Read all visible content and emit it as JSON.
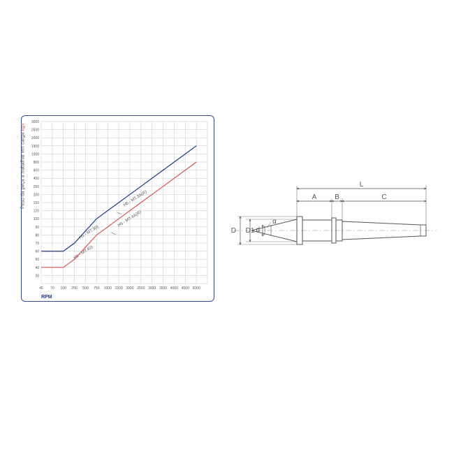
{
  "chart": {
    "type": "line-loglog",
    "xlabel": "RPM",
    "ylabel": "Peso da peça a trabalhar em carga",
    "ylabel_unit": "kgs",
    "background_color": "#ffffff",
    "grid_color": "#b8b8b8",
    "border_color": "#3b4a8a",
    "xticks": [
      45,
      70,
      100,
      250,
      500,
      750,
      1000,
      1500,
      2000,
      2500,
      3000,
      3500,
      4000,
      4500,
      5000
    ],
    "yticks": [
      3000,
      2500,
      2000,
      1500,
      1000,
      800,
      600,
      450,
      250,
      200,
      150,
      120,
      100,
      90,
      80,
      70,
      60,
      50,
      40,
      30
    ],
    "tick_fontsize": 5,
    "grid_cols": 15,
    "grid_rows": 20,
    "series": [
      {
        "name": "H5 - MT.3(I)",
        "color": "#1a3a8c",
        "label_split": "H5 - MT.3A(R)",
        "points_grid": [
          [
            0,
            16
          ],
          [
            1,
            16
          ],
          [
            2,
            16
          ],
          [
            3,
            15
          ],
          [
            5,
            12
          ],
          [
            7,
            10
          ],
          [
            9,
            8
          ],
          [
            11,
            6
          ],
          [
            13,
            4
          ],
          [
            14,
            3
          ]
        ],
        "label_pos_grid": [
          3.5,
          14.5
        ],
        "label_split_pos_grid": [
          7.5,
          10.5
        ]
      },
      {
        "name": "H5 - MT.4(I)",
        "color": "#d9534f",
        "label_split": "H5 - MT.4A(R)",
        "points_grid": [
          [
            0,
            18
          ],
          [
            1,
            18
          ],
          [
            2,
            18
          ],
          [
            3,
            17
          ],
          [
            5,
            14
          ],
          [
            7,
            12
          ],
          [
            9,
            10
          ],
          [
            11,
            8
          ],
          [
            13,
            6
          ],
          [
            14,
            5
          ]
        ],
        "label_pos_grid": [
          3.0,
          17.0
        ],
        "label_split_pos_grid": [
          7.0,
          13.0
        ]
      }
    ]
  },
  "diagram": {
    "labels": {
      "L": "L",
      "A": "A",
      "B": "B",
      "C": "C",
      "D": "D",
      "D1": "D1",
      "d": "d",
      "alpha": "α"
    },
    "line_color": "#555555",
    "centerline_color": "#888888",
    "label_fontsize": 10
  }
}
